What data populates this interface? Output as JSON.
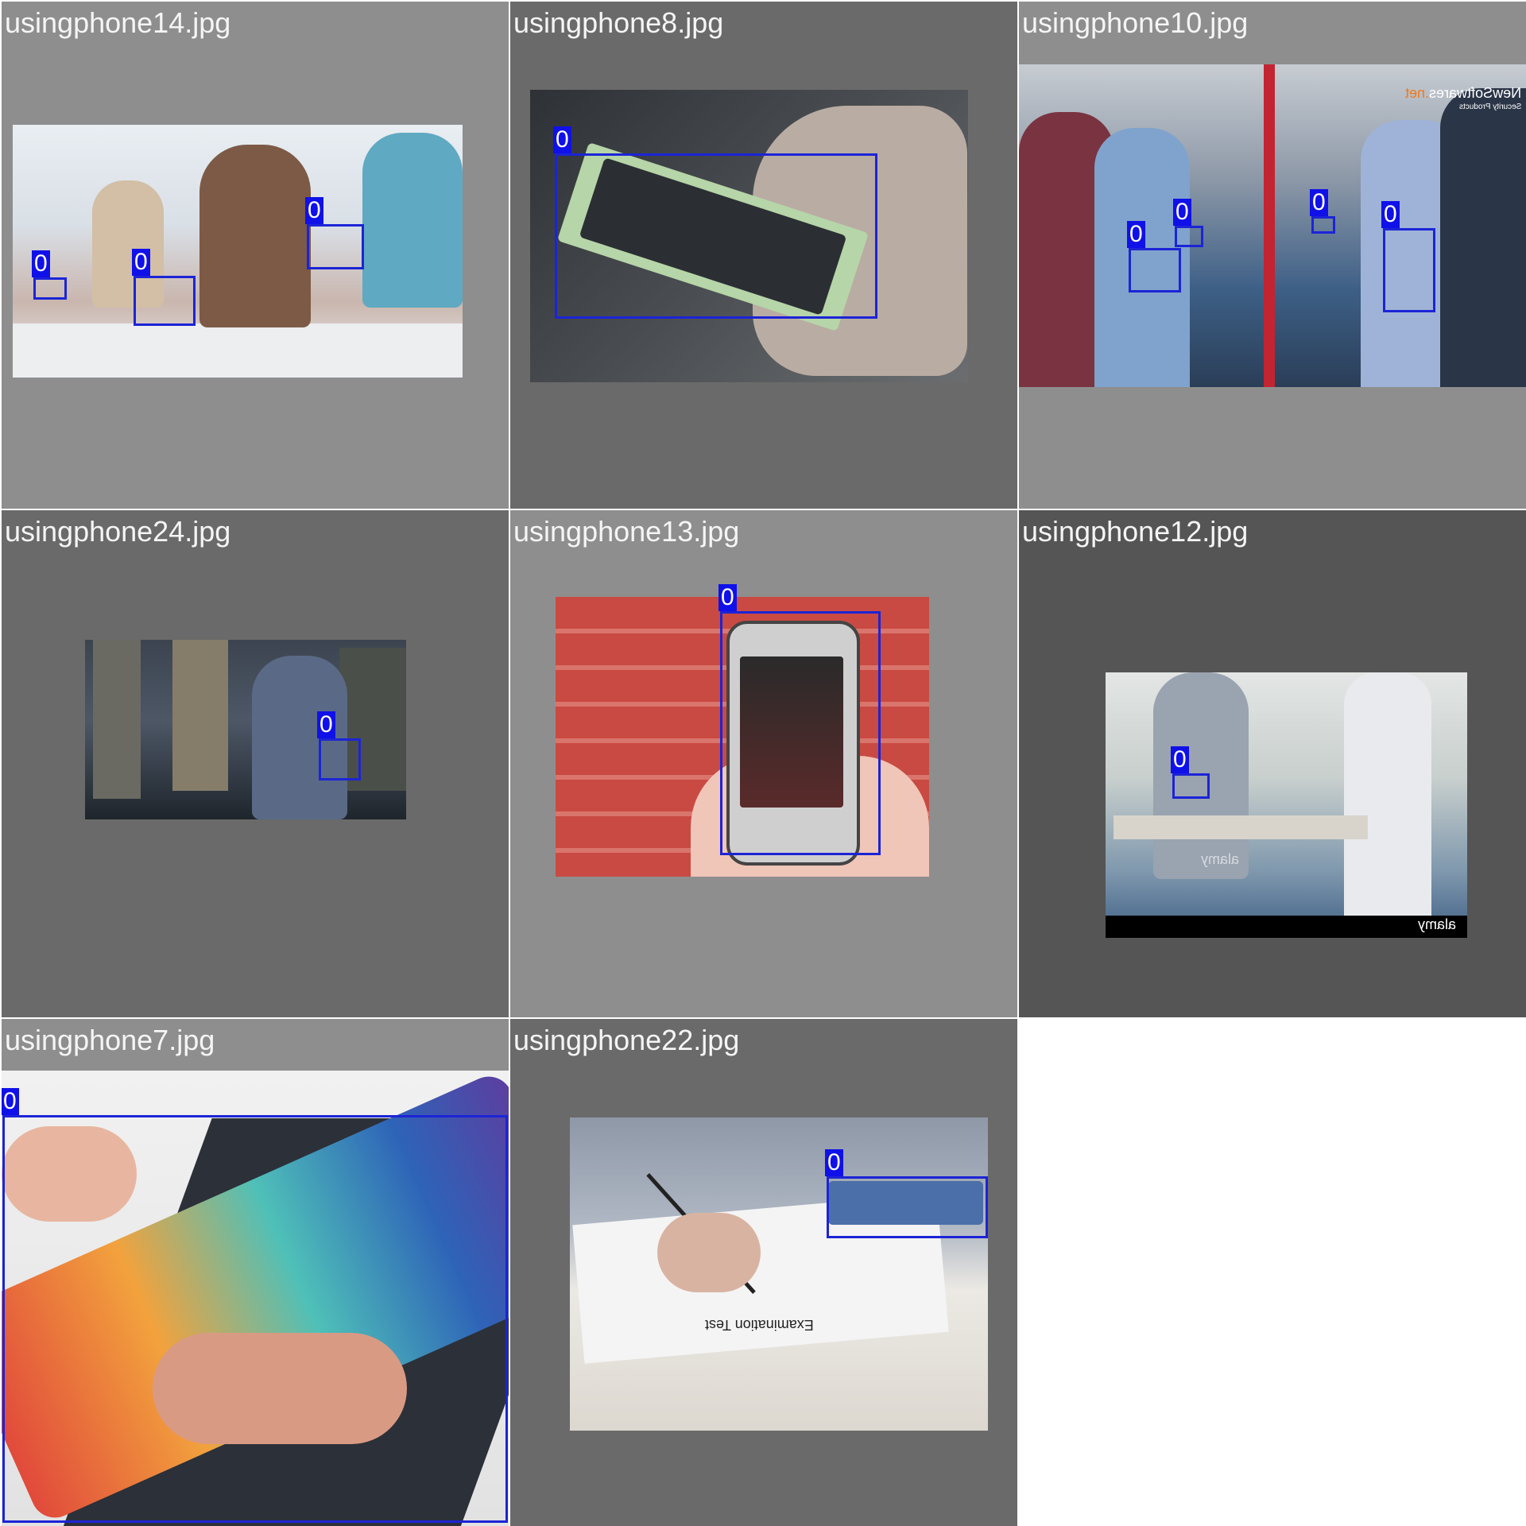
{
  "tiles": [
    {
      "filename": "usingphone14.jpg",
      "detections": [
        "0",
        "0",
        "0"
      ]
    },
    {
      "filename": "usingphone8.jpg",
      "detections": [
        "0"
      ]
    },
    {
      "filename": "usingphone10.jpg",
      "detections": [
        "0",
        "0",
        "0",
        "0"
      ],
      "watermark": {
        "brand": "NewSoftwares",
        "tld": ".net",
        "sub": "Security Products"
      }
    },
    {
      "filename": "usingphone24.jpg",
      "detections": [
        "0"
      ]
    },
    {
      "filename": "usingphone13.jpg",
      "detections": [
        "0"
      ]
    },
    {
      "filename": "usingphone12.jpg",
      "detections": [
        "0"
      ],
      "watermark": {
        "text": "alamy"
      }
    },
    {
      "filename": "usingphone7.jpg",
      "detections": [
        "0"
      ]
    },
    {
      "filename": "usingphone22.jpg",
      "detections": [
        "0"
      ],
      "paper_text": "Examination Test"
    }
  ],
  "colors": {
    "box": "#1c24d6",
    "label_bg": "#1010e8",
    "gray_light": "#8e8e8e",
    "gray_mid": "#6a6a6a",
    "gray_dark": "#555555"
  }
}
